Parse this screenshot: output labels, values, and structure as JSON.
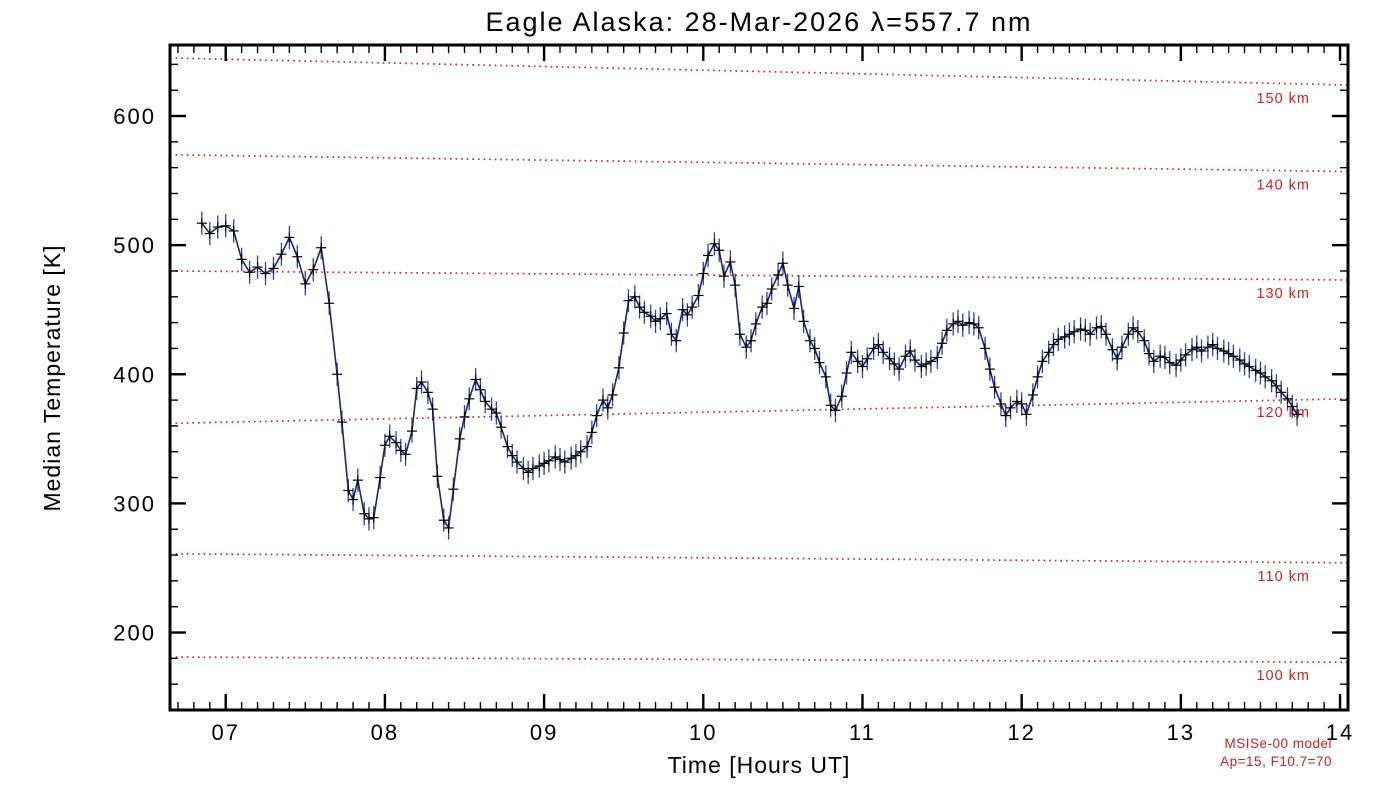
{
  "chart_data": {
    "type": "line",
    "title": "Eagle Alaska: 28-Mar-2026 λ=557.7 nm",
    "xlabel": "Time [Hours UT]",
    "ylabel": "Median Temperature [K]",
    "xlim": [
      6.65,
      14.05
    ],
    "ylim": [
      140,
      655
    ],
    "x_major_ticks": [
      7,
      8,
      9,
      10,
      11,
      12,
      13,
      14
    ],
    "x_tick_labels": [
      "07",
      "08",
      "09",
      "10",
      "11",
      "12",
      "13",
      "14"
    ],
    "x_minor_step": 0.1,
    "y_major_ticks": [
      200,
      300,
      400,
      500,
      600
    ],
    "y_tick_labels": [
      "200",
      "300",
      "400",
      "500",
      "600"
    ],
    "y_minor_step": 20,
    "grid": false,
    "legend": "none",
    "colors": {
      "axis": "#000000",
      "data_line": "#1b2a6b",
      "marker": "#000000",
      "error_bar": "#3040b0",
      "reference": "#cc2222",
      "background": "#ffffff"
    },
    "series": [
      {
        "name": "median temperature",
        "marker": "plus",
        "error_bar": 9,
        "points": [
          [
            6.85,
            517
          ],
          [
            6.9,
            509
          ],
          [
            6.95,
            514
          ],
          [
            7.0,
            515
          ],
          [
            7.05,
            511
          ],
          [
            7.1,
            489
          ],
          [
            7.15,
            479
          ],
          [
            7.2,
            483
          ],
          [
            7.25,
            478
          ],
          [
            7.3,
            482
          ],
          [
            7.35,
            493
          ],
          [
            7.4,
            506
          ],
          [
            7.45,
            491
          ],
          [
            7.5,
            470
          ],
          [
            7.55,
            481
          ],
          [
            7.6,
            498
          ],
          [
            7.65,
            455
          ],
          [
            7.7,
            400
          ],
          [
            7.73,
            363
          ],
          [
            7.77,
            310
          ],
          [
            7.8,
            303
          ],
          [
            7.83,
            318
          ],
          [
            7.87,
            292
          ],
          [
            7.9,
            288
          ],
          [
            7.93,
            289
          ],
          [
            7.97,
            320
          ],
          [
            8.0,
            345
          ],
          [
            8.03,
            352
          ],
          [
            8.07,
            347
          ],
          [
            8.1,
            341
          ],
          [
            8.13,
            338
          ],
          [
            8.17,
            356
          ],
          [
            8.2,
            389
          ],
          [
            8.23,
            394
          ],
          [
            8.27,
            386
          ],
          [
            8.3,
            373
          ],
          [
            8.33,
            321
          ],
          [
            8.37,
            287
          ],
          [
            8.4,
            281
          ],
          [
            8.43,
            311
          ],
          [
            8.47,
            350
          ],
          [
            8.5,
            367
          ],
          [
            8.53,
            381
          ],
          [
            8.57,
            396
          ],
          [
            8.6,
            388
          ],
          [
            8.63,
            379
          ],
          [
            8.67,
            373
          ],
          [
            8.7,
            370
          ],
          [
            8.73,
            359
          ],
          [
            8.77,
            344
          ],
          [
            8.8,
            337
          ],
          [
            8.83,
            332
          ],
          [
            8.87,
            327
          ],
          [
            8.9,
            324
          ],
          [
            8.93,
            327
          ],
          [
            8.97,
            329
          ],
          [
            9.0,
            331
          ],
          [
            9.03,
            333
          ],
          [
            9.07,
            336
          ],
          [
            9.1,
            334
          ],
          [
            9.13,
            332
          ],
          [
            9.17,
            335
          ],
          [
            9.2,
            337
          ],
          [
            9.23,
            340
          ],
          [
            9.27,
            344
          ],
          [
            9.3,
            355
          ],
          [
            9.33,
            368
          ],
          [
            9.37,
            380
          ],
          [
            9.4,
            374
          ],
          [
            9.43,
            384
          ],
          [
            9.47,
            405
          ],
          [
            9.5,
            432
          ],
          [
            9.53,
            457
          ],
          [
            9.57,
            460
          ],
          [
            9.6,
            452
          ],
          [
            9.63,
            448
          ],
          [
            9.67,
            445
          ],
          [
            9.7,
            441
          ],
          [
            9.73,
            443
          ],
          [
            9.77,
            447
          ],
          [
            9.8,
            431
          ],
          [
            9.83,
            426
          ],
          [
            9.87,
            450
          ],
          [
            9.9,
            446
          ],
          [
            9.93,
            452
          ],
          [
            9.97,
            461
          ],
          [
            10.0,
            478
          ],
          [
            10.03,
            492
          ],
          [
            10.07,
            501
          ],
          [
            10.1,
            496
          ],
          [
            10.13,
            476
          ],
          [
            10.17,
            487
          ],
          [
            10.2,
            469
          ],
          [
            10.23,
            431
          ],
          [
            10.27,
            421
          ],
          [
            10.3,
            426
          ],
          [
            10.33,
            439
          ],
          [
            10.37,
            452
          ],
          [
            10.4,
            455
          ],
          [
            10.43,
            466
          ],
          [
            10.47,
            477
          ],
          [
            10.5,
            486
          ],
          [
            10.53,
            469
          ],
          [
            10.57,
            451
          ],
          [
            10.6,
            468
          ],
          [
            10.63,
            441
          ],
          [
            10.67,
            426
          ],
          [
            10.7,
            420
          ],
          [
            10.73,
            409
          ],
          [
            10.77,
            398
          ],
          [
            10.8,
            376
          ],
          [
            10.83,
            372
          ],
          [
            10.87,
            383
          ],
          [
            10.9,
            401
          ],
          [
            10.93,
            417
          ],
          [
            10.97,
            410
          ],
          [
            11.0,
            406
          ],
          [
            11.03,
            412
          ],
          [
            11.07,
            420
          ],
          [
            11.1,
            423
          ],
          [
            11.13,
            417
          ],
          [
            11.17,
            412
          ],
          [
            11.2,
            408
          ],
          [
            11.23,
            404
          ],
          [
            11.27,
            414
          ],
          [
            11.3,
            418
          ],
          [
            11.33,
            411
          ],
          [
            11.37,
            406
          ],
          [
            11.4,
            408
          ],
          [
            11.43,
            410
          ],
          [
            11.47,
            413
          ],
          [
            11.5,
            424
          ],
          [
            11.53,
            434
          ],
          [
            11.57,
            439
          ],
          [
            11.6,
            441
          ],
          [
            11.63,
            438
          ],
          [
            11.67,
            440
          ],
          [
            11.7,
            439
          ],
          [
            11.73,
            436
          ],
          [
            11.77,
            420
          ],
          [
            11.8,
            404
          ],
          [
            11.83,
            390
          ],
          [
            11.87,
            377
          ],
          [
            11.9,
            368
          ],
          [
            11.93,
            374
          ],
          [
            11.97,
            379
          ],
          [
            12.0,
            377
          ],
          [
            12.03,
            369
          ],
          [
            12.07,
            384
          ],
          [
            12.1,
            398
          ],
          [
            12.13,
            410
          ],
          [
            12.17,
            417
          ],
          [
            12.2,
            423
          ],
          [
            12.23,
            427
          ],
          [
            12.27,
            429
          ],
          [
            12.3,
            431
          ],
          [
            12.33,
            433
          ],
          [
            12.37,
            435
          ],
          [
            12.4,
            434
          ],
          [
            12.43,
            431
          ],
          [
            12.47,
            436
          ],
          [
            12.5,
            437
          ],
          [
            12.53,
            431
          ],
          [
            12.57,
            419
          ],
          [
            12.6,
            412
          ],
          [
            12.63,
            421
          ],
          [
            12.67,
            431
          ],
          [
            12.7,
            436
          ],
          [
            12.73,
            433
          ],
          [
            12.77,
            426
          ],
          [
            12.8,
            416
          ],
          [
            12.83,
            410
          ],
          [
            12.87,
            414
          ],
          [
            12.9,
            413
          ],
          [
            12.93,
            409
          ],
          [
            12.97,
            407
          ],
          [
            13.0,
            411
          ],
          [
            13.03,
            415
          ],
          [
            13.07,
            419
          ],
          [
            13.1,
            421
          ],
          [
            13.13,
            418
          ],
          [
            13.17,
            421
          ],
          [
            13.2,
            423
          ],
          [
            13.23,
            420
          ],
          [
            13.27,
            418
          ],
          [
            13.3,
            416
          ],
          [
            13.33,
            414
          ],
          [
            13.37,
            411
          ],
          [
            13.4,
            408
          ],
          [
            13.43,
            406
          ],
          [
            13.47,
            403
          ],
          [
            13.5,
            401
          ],
          [
            13.53,
            398
          ],
          [
            13.57,
            395
          ],
          [
            13.6,
            391
          ],
          [
            13.63,
            386
          ],
          [
            13.67,
            381
          ],
          [
            13.7,
            375
          ],
          [
            13.73,
            369
          ]
        ]
      }
    ],
    "altitude_lines": [
      {
        "label": "150 km",
        "y_start": 645,
        "y_end": 624
      },
      {
        "label": "140 km",
        "y_start": 570,
        "y_end": 557
      },
      {
        "label": "130 km",
        "y_start": 480,
        "y_end": 473
      },
      {
        "label": "120 km",
        "y_start": 362,
        "y_end": 381
      },
      {
        "label": "110 km",
        "y_start": 261,
        "y_end": 254
      },
      {
        "label": "100 km",
        "y_start": 181,
        "y_end": 177
      }
    ],
    "annotations": [
      "MSISe-00 model",
      "Ap=15, F10.7=70"
    ]
  }
}
